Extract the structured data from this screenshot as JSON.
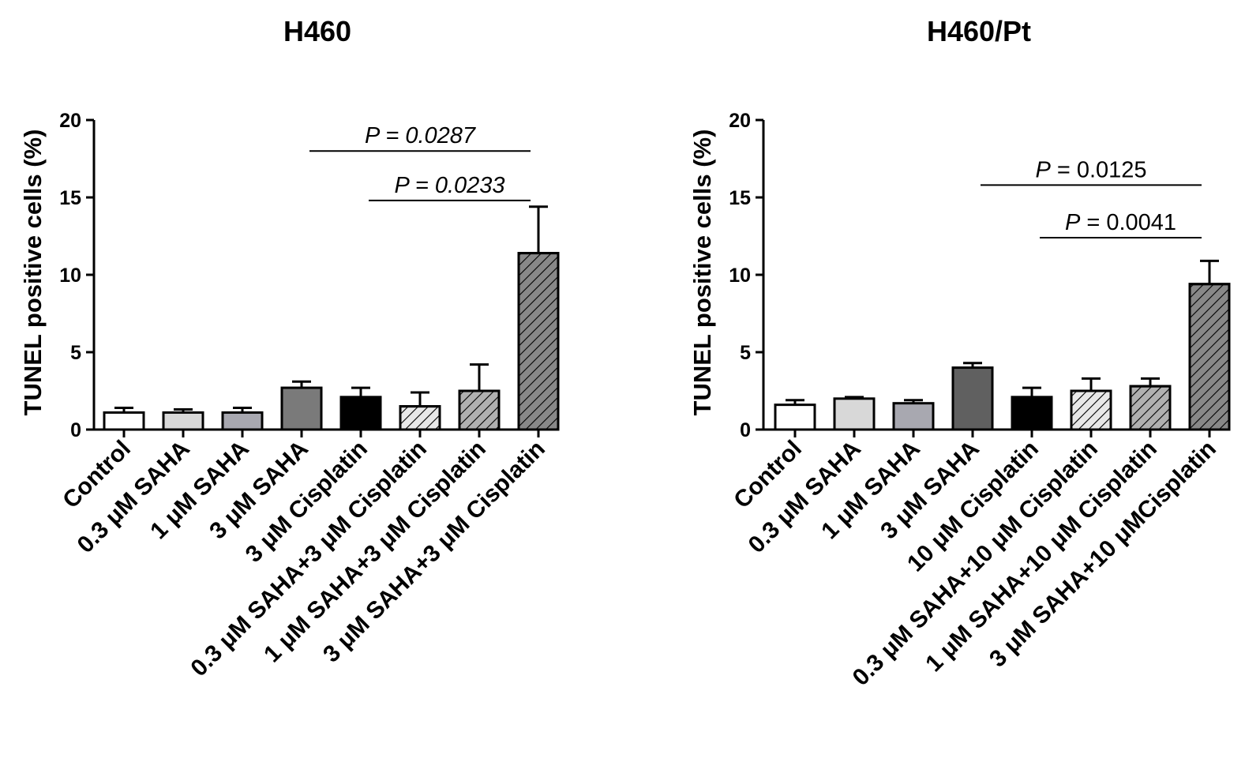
{
  "chart_data": [
    {
      "type": "bar",
      "title": "H460",
      "ylabel": "TUNEL positive cells (%)",
      "xlabel": "",
      "ylim": [
        0,
        20
      ],
      "yticks": [
        "0",
        "5",
        "10",
        "15",
        "20"
      ],
      "categories": [
        "Control",
        "0.3 μM SAHA",
        "1 μM SAHA",
        "3 μM SAHA",
        "3 μM Cisplatin",
        "0.3 μM SAHA+3 μM Cisplatin",
        "1 μM SAHA+3 μM Cisplatin",
        "3 μM SAHA+3 μM Cisplatin"
      ],
      "values": [
        1.1,
        1.1,
        1.1,
        2.7,
        2.1,
        1.5,
        2.5,
        11.4
      ],
      "errors": [
        0.3,
        0.2,
        0.3,
        0.4,
        0.6,
        0.9,
        1.7,
        3.0
      ],
      "fills": [
        "#ffffff",
        "#d8d8d8",
        "#a8a8b0",
        "#7a7a7a",
        "#000000",
        "#e8e8e8",
        "#b0b0b0",
        "#888888"
      ],
      "hatched": [
        false,
        false,
        false,
        false,
        false,
        true,
        true,
        true
      ],
      "annotations": [
        {
          "label": "P = 0.0287",
          "from": 3,
          "to": 7,
          "y": 18.0
        },
        {
          "label": "P = 0.0233",
          "from": 4,
          "to": 7,
          "y": 14.8
        }
      ]
    },
    {
      "type": "bar",
      "title": "H460/Pt",
      "ylabel": "TUNEL positive cells (%)",
      "xlabel": "",
      "ylim": [
        0,
        20
      ],
      "yticks": [
        "0",
        "5",
        "10",
        "15",
        "20"
      ],
      "categories": [
        "Control",
        "0.3 μM SAHA",
        "1 μM SAHA",
        "3 μM SAHA",
        "10 μM Cisplatin",
        "0.3 μM SAHA+10 μM Cisplatin",
        "1 μM SAHA+10 μM Cisplatin",
        "3 μM SAHA+10 μMCisplatin"
      ],
      "values": [
        1.6,
        2.0,
        1.7,
        4.0,
        2.1,
        2.5,
        2.8,
        9.4
      ],
      "errors": [
        0.3,
        0.1,
        0.2,
        0.3,
        0.6,
        0.8,
        0.5,
        1.5
      ],
      "fills": [
        "#ffffff",
        "#d8d8d8",
        "#a8a8b0",
        "#606060",
        "#000000",
        "#e8e8e8",
        "#b0b0b0",
        "#888888"
      ],
      "hatched": [
        false,
        false,
        false,
        false,
        false,
        true,
        true,
        true
      ],
      "annotations": [
        {
          "label": "P = 0.0125",
          "from": 3,
          "to": 7,
          "y": 15.8
        },
        {
          "label": "P = 0.0041",
          "from": 4,
          "to": 7,
          "y": 12.4
        }
      ]
    }
  ]
}
